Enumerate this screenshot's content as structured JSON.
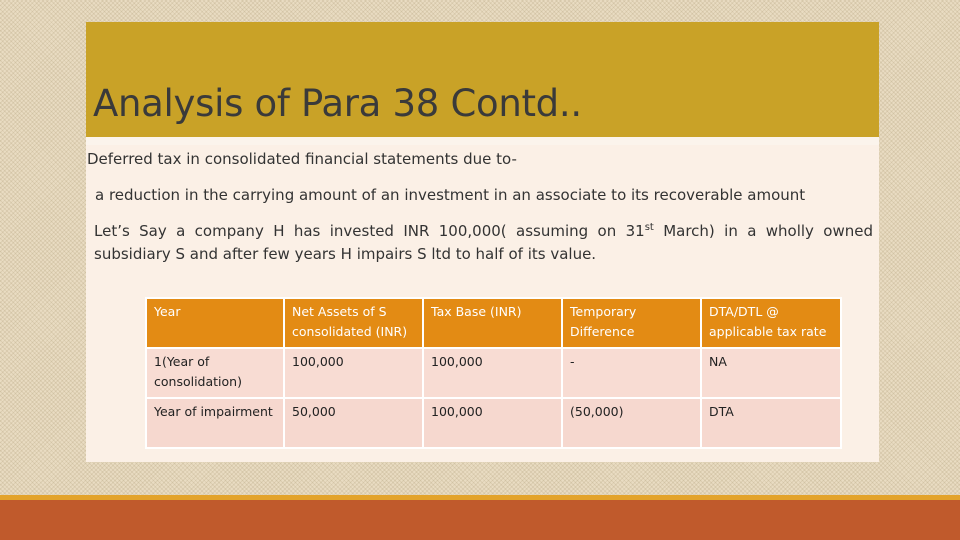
{
  "slide": {
    "title": "Analysis of Para 38 Contd..",
    "paragraph_1": "Deferred tax in consolidated financial statements due to-",
    "paragraph_2": "a reduction in the carrying amount of an investment in an associate to its recoverable amount",
    "paragraph_3_before_sup": "Let’s Say a company H has invested INR 100,000( assuming on 31",
    "paragraph_3_sup": "st",
    "paragraph_3_after_sup": " March) in a wholly owned subsidiary S and after few years H impairs S ltd to half of its value."
  },
  "table": {
    "headers": [
      "Year",
      "Net Assets of S consolidated (INR)",
      "Tax Base (INR)",
      "Temporary Difference",
      "DTA/DTL @ applicable tax rate"
    ],
    "rows": [
      [
        "1(Year of consolidation)",
        "100,000",
        "100,000",
        "-",
        "NA"
      ],
      [
        "Year of impairment",
        "50,000",
        "100,000",
        "(50,000)",
        "DTA"
      ]
    ]
  },
  "colors": {
    "title_bar": "#c9a227",
    "table_header": "#e38b14",
    "table_cell": "#f6d8cf",
    "bottom_band": "#c05a2c",
    "bottom_stripe": "#e3a32b"
  }
}
